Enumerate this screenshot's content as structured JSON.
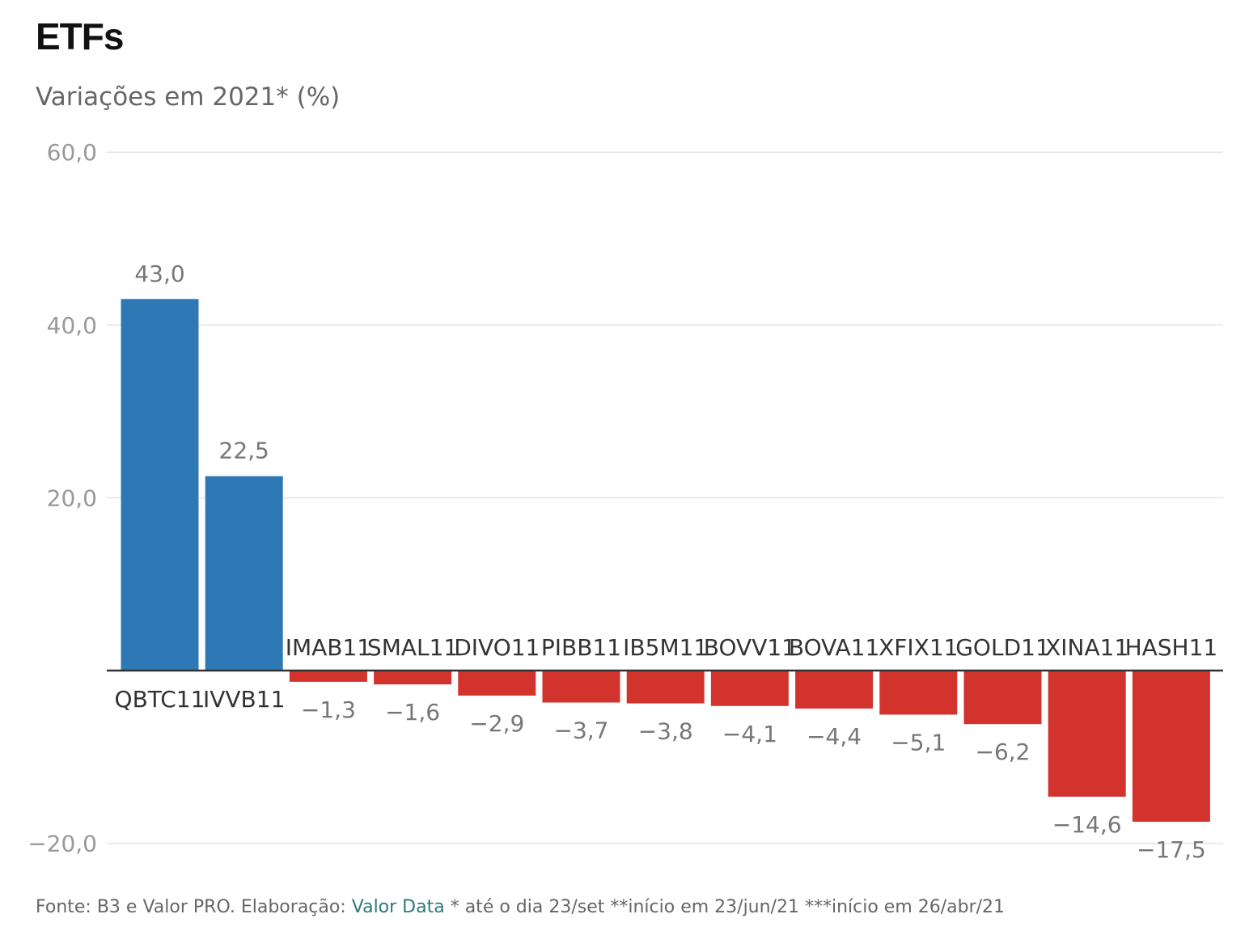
{
  "chart_data": {
    "type": "bar",
    "title": "ETFs",
    "subtitle": "Variações em 2021* (%)",
    "xlabel": "",
    "ylabel": "",
    "ylim": [
      -20,
      60
    ],
    "yticks": [
      60,
      40,
      20,
      -20
    ],
    "ytick_labels": [
      "60,0",
      "40,0",
      "20,0",
      "−20,0"
    ],
    "grid": true,
    "legend": "none",
    "categories": [
      "QBTC11",
      "IVVB11",
      "IMAB11",
      "SMAL11",
      "DIVO11",
      "PIBB11",
      "IB5M11",
      "BOVV11",
      "BOVA11",
      "XFIX11",
      "GOLD11",
      "XINA11",
      "HASH11"
    ],
    "values": [
      43.0,
      22.5,
      -1.3,
      -1.6,
      -2.9,
      -3.7,
      -3.8,
      -4.1,
      -4.4,
      -5.1,
      -6.2,
      -14.6,
      -17.5
    ],
    "value_labels": [
      "43,0",
      "22,5",
      "−1,3",
      "−1,6",
      "−2,9",
      "−3,7",
      "−3,8",
      "−4,1",
      "−4,4",
      "−5,1",
      "−6,2",
      "−14,6",
      "−17,5"
    ],
    "colors": {
      "positive": "#2e79b5",
      "negative": "#d2342d",
      "grid": "#e5e5e5",
      "baseline": "#333333",
      "tick_text": "#999999",
      "value_text": "#777777",
      "category_text": "#333333"
    }
  },
  "footer": {
    "source_prefix": "Fonte: B3 e Valor PRO. Elaboração: ",
    "source_link": "Valor Data",
    "notes": " * até o dia 23/set **início em 23/jun/21 ***início em 26/abr/21"
  }
}
